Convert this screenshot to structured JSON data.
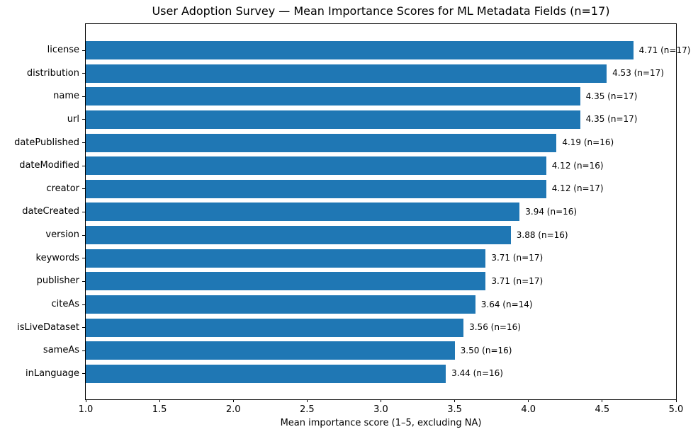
{
  "chart_data": {
    "type": "bar",
    "orientation": "horizontal",
    "title": "User Adoption Survey — Mean Importance Scores for ML Metadata Fields (n=17)",
    "xlabel": "Mean importance score (1–5, excluding NA)",
    "xlim": [
      1.0,
      5.0
    ],
    "grid": false,
    "legend": "none",
    "bar_color": "#1f77b4",
    "categories": [
      "license",
      "distribution",
      "name",
      "url",
      "datePublished",
      "dateModified",
      "creator",
      "dateCreated",
      "version",
      "keywords",
      "publisher",
      "citeAs",
      "isLiveDataset",
      "sameAs",
      "inLanguage"
    ],
    "values": [
      4.71,
      4.53,
      4.35,
      4.35,
      4.19,
      4.12,
      4.12,
      3.94,
      3.88,
      3.71,
      3.71,
      3.64,
      3.56,
      3.5,
      3.44
    ],
    "respondent_counts": [
      17,
      17,
      17,
      17,
      16,
      16,
      17,
      16,
      16,
      17,
      17,
      14,
      16,
      16,
      16
    ],
    "bar_labels": [
      "4.71 (n=17)",
      "4.53 (n=17)",
      "4.35 (n=17)",
      "4.35 (n=17)",
      "4.19 (n=16)",
      "4.12 (n=16)",
      "4.12 (n=17)",
      "3.94 (n=16)",
      "3.88 (n=16)",
      "3.71 (n=17)",
      "3.71 (n=17)",
      "3.64 (n=14)",
      "3.56 (n=16)",
      "3.50 (n=16)",
      "3.44 (n=16)"
    ],
    "x_ticks": [
      1.0,
      1.5,
      2.0,
      2.5,
      3.0,
      3.5,
      4.0,
      4.5,
      5.0
    ],
    "x_tick_labels": [
      "1.0",
      "1.5",
      "2.0",
      "2.5",
      "3.0",
      "3.5",
      "4.0",
      "4.5",
      "5.0"
    ]
  }
}
